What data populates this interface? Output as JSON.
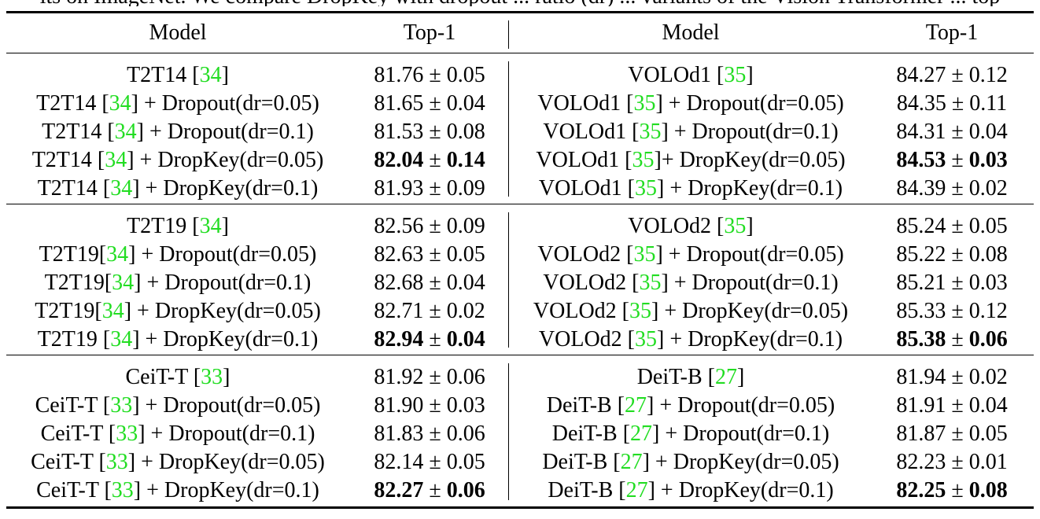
{
  "caption_fragment": "lts on ImageNet. We compare DropKey with dropout ... ratio (dr) ... variants of the Vision Transformer ... top",
  "table": {
    "headers": [
      "Model",
      "Top-1",
      "Model",
      "Top-1"
    ],
    "groups": [
      {
        "rows": [
          {
            "left": {
              "pre": "T2T14 [",
              "ref": "34",
              "post": "]",
              "acc": "81.76",
              "std": "0.05",
              "bold": false
            },
            "right": {
              "pre": "VOLOd1 [",
              "ref": "35",
              "post": "]",
              "acc": "84.27",
              "std": "0.12",
              "bold": false
            }
          },
          {
            "left": {
              "pre": "T2T14 [",
              "ref": "34",
              "post": "] + Dropout(dr=0.05)",
              "acc": "81.65",
              "std": "0.04",
              "bold": false
            },
            "right": {
              "pre": "VOLOd1 [",
              "ref": "35",
              "post": "] + Dropout(dr=0.05)",
              "acc": "84.35",
              "std": "0.11",
              "bold": false
            }
          },
          {
            "left": {
              "pre": "T2T14 [",
              "ref": "34",
              "post": "] + Dropout(dr=0.1)",
              "acc": "81.53",
              "std": "0.08",
              "bold": false
            },
            "right": {
              "pre": "VOLOd1 [",
              "ref": "35",
              "post": "] + Dropout(dr=0.1)",
              "acc": "84.31",
              "std": "0.04",
              "bold": false
            }
          },
          {
            "left": {
              "pre": "T2T14 [",
              "ref": "34",
              "post": "] + DropKey(dr=0.05)",
              "acc": "82.04",
              "std": "0.14",
              "bold": true
            },
            "right": {
              "pre": "VOLOd1 [",
              "ref": "35",
              "post": "]+ DropKey(dr=0.05)",
              "acc": "84.53",
              "std": "0.03",
              "bold": true
            }
          },
          {
            "left": {
              "pre": "T2T14 [",
              "ref": "34",
              "post": "] + DropKey(dr=0.1)",
              "acc": "81.93",
              "std": "0.09",
              "bold": false
            },
            "right": {
              "pre": "VOLOd1 [",
              "ref": "35",
              "post": "] + DropKey(dr=0.1)",
              "acc": "84.39",
              "std": "0.02",
              "bold": false
            }
          }
        ]
      },
      {
        "rows": [
          {
            "left": {
              "pre": "T2T19 [",
              "ref": "34",
              "post": "]",
              "acc": "82.56",
              "std": "0.09",
              "bold": false
            },
            "right": {
              "pre": "VOLOd2 [",
              "ref": "35",
              "post": "]",
              "acc": "85.24",
              "std": "0.05",
              "bold": false
            }
          },
          {
            "left": {
              "pre": "T2T19[",
              "ref": "34",
              "post": "] + Dropout(dr=0.05)",
              "acc": "82.63",
              "std": "0.05",
              "bold": false
            },
            "right": {
              "pre": "VOLOd2 [",
              "ref": "35",
              "post": "] + Dropout(dr=0.05)",
              "acc": "85.22",
              "std": "0.08",
              "bold": false
            }
          },
          {
            "left": {
              "pre": "T2T19[",
              "ref": "34",
              "post": "] + Dropout(dr=0.1)",
              "acc": "82.68",
              "std": "0.04",
              "bold": false
            },
            "right": {
              "pre": "VOLOd2 [",
              "ref": "35",
              "post": "] + Dropout(dr=0.1)",
              "acc": "85.21",
              "std": "0.03",
              "bold": false
            }
          },
          {
            "left": {
              "pre": "T2T19[",
              "ref": "34",
              "post": "] + DropKey(dr=0.05)",
              "acc": "82.71",
              "std": "0.02",
              "bold": false
            },
            "right": {
              "pre": "VOLOd2 [",
              "ref": "35",
              "post": "] + DropKey(dr=0.05)",
              "acc": "85.33",
              "std": "0.12",
              "bold": false
            }
          },
          {
            "left": {
              "pre": "T2T19 [",
              "ref": "34",
              "post": "] + DropKey(dr=0.1)",
              "acc": "82.94",
              "std": "0.04",
              "bold": true
            },
            "right": {
              "pre": "VOLOd2 [",
              "ref": "35",
              "post": "] + DropKey(dr=0.1)",
              "acc": "85.38",
              "std": "0.06",
              "bold": true
            }
          }
        ]
      },
      {
        "rows": [
          {
            "left": {
              "pre": "CeiT-T [",
              "ref": "33",
              "post": "]",
              "acc": "81.92",
              "std": "0.06",
              "bold": false
            },
            "right": {
              "pre": "DeiT-B [",
              "ref": "27",
              "post": "]",
              "acc": "81.94",
              "std": "0.02",
              "bold": false
            }
          },
          {
            "left": {
              "pre": "CeiT-T [",
              "ref": "33",
              "post": "] + Dropout(dr=0.05)",
              "acc": "81.90",
              "std": "0.03",
              "bold": false
            },
            "right": {
              "pre": "DeiT-B [",
              "ref": "27",
              "post": "] + Dropout(dr=0.05)",
              "acc": "81.91",
              "std": "0.04",
              "bold": false
            }
          },
          {
            "left": {
              "pre": "CeiT-T [",
              "ref": "33",
              "post": "] + Dropout(dr=0.1)",
              "acc": "81.83",
              "std": "0.06",
              "bold": false
            },
            "right": {
              "pre": "DeiT-B [",
              "ref": "27",
              "post": "] + Dropout(dr=0.1)",
              "acc": "81.87",
              "std": "0.05",
              "bold": false
            }
          },
          {
            "left": {
              "pre": "CeiT-T [",
              "ref": "33",
              "post": "] + DropKey(dr=0.05)",
              "acc": "82.14",
              "std": "0.05",
              "bold": false
            },
            "right": {
              "pre": "DeiT-B [",
              "ref": "27",
              "post": "] + DropKey(dr=0.05)",
              "acc": "82.23",
              "std": "0.01",
              "bold": false
            }
          },
          {
            "left": {
              "pre": "CeiT-T [",
              "ref": "33",
              "post": "] + DropKey(dr=0.1)",
              "acc": "82.27",
              "std": "0.06",
              "bold": true
            },
            "right": {
              "pre": "DeiT-B [",
              "ref": "27",
              "post": "] + DropKey(dr=0.1)",
              "acc": "82.25",
              "std": "0.08",
              "bold": true
            }
          }
        ]
      }
    ],
    "pm_symbol": "±",
    "ref_color": "#22dd22"
  }
}
